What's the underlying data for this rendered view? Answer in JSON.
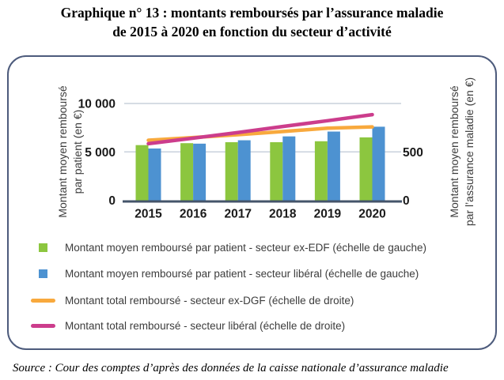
{
  "figure": {
    "title_line1": "Graphique n° 13 : montants remboursés par l’assurance maladie",
    "title_line2": "de 2015 à 2020 en fonction du secteur d’activité",
    "source": "Source : Cour des comptes d’après des données de la caisse nationale d’assurance maladie"
  },
  "axes": {
    "left_title_line1": "Montant moyen remboursé",
    "left_title_line2": "par patient (en €)",
    "right_title_line1": "Montant moyen remboursé",
    "right_title_line2": "par l’assurance maladie (en €)"
  },
  "legend": {
    "items": [
      {
        "swatch": "square",
        "color": "#8cc63f",
        "label": "Montant moyen remboursé par patient - secteur ex-EDF (échelle de gauche)"
      },
      {
        "swatch": "square",
        "color": "#4d92d1",
        "label": "Montant moyen remboursé par patient - secteur libéral (échelle de gauche)"
      },
      {
        "swatch": "line",
        "color": "#f8a93d",
        "label": "Montant total remboursé - secteur ex-DGF (échelle de droite)"
      },
      {
        "swatch": "line",
        "color": "#cc3d8c",
        "label": "Montant total remboursé - secteur libéral (échelle de droite)"
      }
    ]
  },
  "chart_data": {
    "type": "combo bar+line",
    "categories": [
      "2015",
      "2016",
      "2017",
      "2018",
      "2019",
      "2020"
    ],
    "bar_series": [
      {
        "name": "Montant moyen remboursé par patient - secteur ex-EDF",
        "axis": "left",
        "color": "#8cc63f",
        "values": [
          5700,
          5900,
          6000,
          6000,
          6100,
          6500
        ]
      },
      {
        "name": "Montant moyen remboursé par patient - secteur libéral",
        "axis": "left",
        "color": "#4d92d1",
        "values": [
          5350,
          5850,
          6200,
          6600,
          7100,
          7600
        ]
      }
    ],
    "line_series": [
      {
        "name": "Montant total remboursé - secteur ex-DGF",
        "axis": "right",
        "color": "#f8a93d",
        "values": [
          620,
          648,
          678,
          710,
          745,
          758
        ]
      },
      {
        "name": "Montant total remboursé - secteur libéral",
        "axis": "right",
        "color": "#cc3d8c",
        "values": [
          585,
          642,
          700,
          762,
          822,
          885
        ]
      }
    ],
    "left_axis": {
      "title": "Montant moyen remboursé par patient (en €)",
      "range": [
        0,
        10000
      ],
      "ticks": [
        0,
        5000,
        10000
      ],
      "tick_labels": [
        "0",
        "5 000",
        "10 000"
      ]
    },
    "right_axis": {
      "title": "Montant moyen remboursé par l’assurance maladie (en €)",
      "range": [
        0,
        1000
      ],
      "ticks": [
        0,
        500
      ],
      "tick_labels": [
        "0",
        "500"
      ]
    },
    "grid": "horizontal gridlines at non-zero left-axis ticks",
    "legend_position": "bottom"
  },
  "colors": {
    "grid": "#c9d0dc",
    "axis_line": "#44546a",
    "tick_text": "#1a1a1a",
    "axis_title_text": "#3c3c3c",
    "legend_text": "#3c3c3c",
    "box_border": "#4d5b7c"
  }
}
